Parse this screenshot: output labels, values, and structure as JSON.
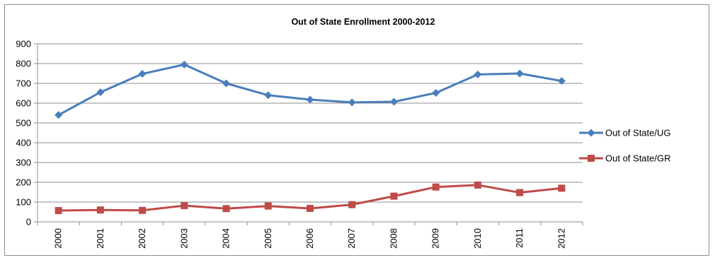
{
  "chart_data": {
    "type": "line",
    "title": "Out of State Enrollment 2000-2012",
    "xlabel": "",
    "ylabel": "",
    "categories": [
      "2000",
      "2001",
      "2002",
      "2003",
      "2004",
      "2005",
      "2006",
      "2007",
      "2008",
      "2009",
      "2010",
      "2011",
      "2012"
    ],
    "ylim": [
      0,
      900
    ],
    "yticks": [
      "0",
      "100",
      "200",
      "300",
      "400",
      "500",
      "600",
      "700",
      "800",
      "900"
    ],
    "grid": true,
    "legend_position": "right",
    "series": [
      {
        "name": "Out of State/UG",
        "color": "#4a7ebb",
        "marker": "diamond",
        "values": [
          540,
          655,
          748,
          795,
          700,
          640,
          618,
          604,
          607,
          652,
          745,
          750,
          712
        ]
      },
      {
        "name": "Out of State/GR",
        "color": "#be4b48",
        "marker": "square",
        "values": [
          57,
          60,
          58,
          82,
          67,
          80,
          68,
          87,
          130,
          176,
          186,
          148,
          170
        ]
      }
    ]
  }
}
